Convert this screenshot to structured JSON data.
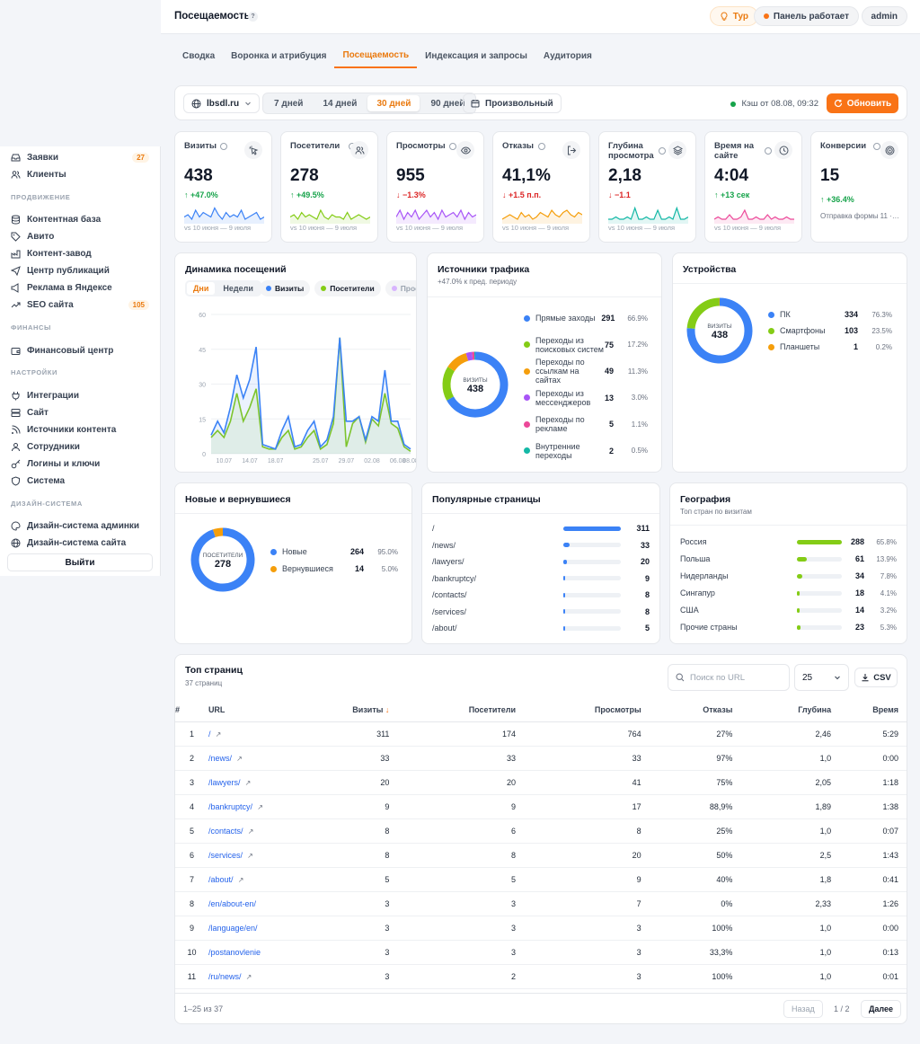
{
  "sidebar": {
    "items_top": [
      {
        "label": "Заявки",
        "badge": "27"
      },
      {
        "label": "Клиенты"
      }
    ],
    "section_promo": "ПРОДВИЖЕНИЕ",
    "items_promo": [
      {
        "label": "Контентная база"
      },
      {
        "label": "Авито"
      },
      {
        "label": "Контент-завод"
      },
      {
        "label": "Центр публикаций"
      },
      {
        "label": "Реклама в Яндексе"
      },
      {
        "label": "SEO сайта",
        "badge": "105"
      }
    ],
    "section_fin": "ФИНАНСЫ",
    "items_fin": [
      {
        "label": "Финансовый центр"
      }
    ],
    "section_settings": "НАСТРОЙКИ",
    "items_settings": [
      {
        "label": "Интеграции"
      },
      {
        "label": "Сайт"
      },
      {
        "label": "Источники контента"
      },
      {
        "label": "Сотрудники"
      },
      {
        "label": "Логины и ключи"
      },
      {
        "label": "Система"
      }
    ],
    "section_design": "ДИЗАЙН-СИСТЕМА",
    "items_design": [
      {
        "label": "Дизайн-система админки"
      },
      {
        "label": "Дизайн-система сайта"
      }
    ],
    "logout": "Выйти"
  },
  "header": {
    "title": "Посещаемость",
    "help": "?",
    "tour": "Тур",
    "status": "Панель работает",
    "user": "admin"
  },
  "tabs": [
    "Сводка",
    "Воронка и атрибуция",
    "Посещаемость",
    "Индексация и запросы",
    "Аудитория"
  ],
  "active_tab": 2,
  "filters": {
    "site": "lbsdl.ru",
    "periods": [
      "7 дней",
      "14 дней",
      "30 дней",
      "90 дней"
    ],
    "active_period": 2,
    "custom": "Произвольный",
    "cache": "Кэш от 08.08, 09:32",
    "refresh": "Обновить"
  },
  "colors": {
    "accent": "#f97316",
    "blue": "#3b82f6",
    "green": "#84cc16",
    "purple": "#a855f7",
    "orange": "#f59e0b",
    "teal": "#14b8a6",
    "pink": "#ec4899",
    "red": "#dc2626",
    "up": "#16a34a"
  },
  "kpis": [
    {
      "label": "Визиты",
      "value": "438",
      "delta": "+47.0%",
      "dir": "up",
      "cmp": "vs 10 июня — 9 июля",
      "color": "#3b82f6",
      "icon": "pointer-icon",
      "spark": [
        3,
        4,
        2,
        6,
        3,
        5,
        4,
        3,
        7,
        4,
        2,
        5,
        3,
        4,
        3,
        6,
        2,
        3,
        4,
        5,
        2,
        3
      ]
    },
    {
      "label": "Посетители",
      "value": "278",
      "delta": "+49.5%",
      "dir": "up",
      "cmp": "vs 10 июня — 9 июля",
      "color": "#84cc16",
      "icon": "users-icon",
      "spark": [
        3,
        4,
        2,
        5,
        3,
        4,
        3,
        2,
        6,
        3,
        2,
        4,
        3,
        3,
        2,
        5,
        2,
        3,
        4,
        3,
        2,
        3
      ]
    },
    {
      "label": "Просмотры",
      "value": "955",
      "delta": "−1.3%",
      "dir": "down",
      "cmp": "vs 10 июня — 9 июля",
      "color": "#a855f7",
      "icon": "eye-icon",
      "spark": [
        3,
        6,
        2,
        5,
        3,
        6,
        2,
        4,
        6,
        3,
        5,
        2,
        6,
        3,
        4,
        5,
        3,
        6,
        2,
        5,
        3,
        4
      ]
    },
    {
      "label": "Отказы",
      "value": "41,1%",
      "delta": "+1.5 п.п.",
      "dir": "down",
      "cmp": "vs 10 июня — 9 июля",
      "color": "#f59e0b",
      "icon": "exit-icon",
      "spark": [
        2,
        3,
        4,
        3,
        2,
        5,
        3,
        4,
        2,
        3,
        5,
        4,
        3,
        6,
        4,
        3,
        5,
        6,
        4,
        3,
        5,
        4
      ]
    },
    {
      "label": "Глубина просмотра",
      "value": "2,18",
      "delta": "−1.1",
      "dir": "down",
      "cmp": "vs 10 июня — 9 июля",
      "color": "#14b8a6",
      "icon": "layers-icon",
      "spark": [
        2,
        2,
        3,
        2,
        2,
        3,
        2,
        7,
        2,
        2,
        3,
        2,
        2,
        6,
        2,
        2,
        3,
        2,
        7,
        2,
        2,
        3
      ]
    },
    {
      "label": "Время на сайте",
      "value": "4:04",
      "delta": "+13 сек",
      "dir": "up",
      "cmp": "vs 10 июня — 9 июля",
      "color": "#ec4899",
      "icon": "clock-icon",
      "spark": [
        2,
        3,
        2,
        2,
        4,
        2,
        2,
        3,
        6,
        2,
        2,
        3,
        2,
        2,
        4,
        2,
        3,
        2,
        2,
        3,
        2,
        2
      ]
    },
    {
      "label": "Конверсии",
      "value": "15",
      "delta": "+36.4%",
      "dir": "up",
      "cmp": "Отправка формы 11 ·…",
      "color": "#111827",
      "icon": "target-icon",
      "spark": []
    }
  ],
  "dynamics": {
    "title": "Динамика посещений",
    "toggle": [
      "Дни",
      "Недели"
    ],
    "legend": [
      "Визиты",
      "Посетители",
      "Просм"
    ],
    "chart_data": {
      "type": "line",
      "x": [
        "08.07",
        "09.07",
        "10.07",
        "11.07",
        "12.07",
        "13.07",
        "14.07",
        "15.07",
        "16.07",
        "17.07",
        "18.07",
        "19.07",
        "20.07",
        "21.07",
        "22.07",
        "23.07",
        "24.07",
        "25.07",
        "26.07",
        "27.07",
        "28.07",
        "29.07",
        "30.07",
        "31.07",
        "01.08",
        "02.08",
        "03.08",
        "04.08",
        "05.08",
        "06.08",
        "07.08",
        "08.08"
      ],
      "tick_labels": [
        "10.07",
        "14.07",
        "18.07",
        "25.07",
        "29.07",
        "02.08",
        "06.08",
        "08.08"
      ],
      "ylim": [
        0,
        60
      ],
      "yticks": [
        0,
        15,
        30,
        45,
        60
      ],
      "series": [
        {
          "name": "Визиты",
          "color": "#3b82f6",
          "values": [
            8,
            14,
            9,
            20,
            34,
            24,
            32,
            46,
            4,
            3,
            2,
            10,
            16,
            3,
            4,
            10,
            14,
            3,
            6,
            16,
            50,
            14,
            14,
            16,
            6,
            16,
            14,
            36,
            14,
            14,
            4,
            2
          ]
        },
        {
          "name": "Посетители",
          "color": "#84cc16",
          "values": [
            7,
            10,
            7,
            14,
            26,
            14,
            20,
            28,
            3,
            2,
            2,
            7,
            10,
            2,
            3,
            7,
            10,
            2,
            4,
            13,
            50,
            3,
            13,
            16,
            5,
            15,
            12,
            26,
            13,
            11,
            3,
            1
          ]
        }
      ]
    }
  },
  "sources": {
    "title": "Источники трафика",
    "sub": "+47.0% к пред. периоду",
    "center_label": "визиты",
    "center_value": "438",
    "chart_data": {
      "type": "pie",
      "items": [
        {
          "label": "Прямые заходы",
          "value": 291,
          "pct": "66.9%",
          "color": "#3b82f6"
        },
        {
          "label": "Переходы из поисковых систем",
          "value": 75,
          "pct": "17.2%",
          "color": "#84cc16"
        },
        {
          "label": "Переходы по ссылкам на сайтах",
          "value": 49,
          "pct": "11.3%",
          "color": "#f59e0b"
        },
        {
          "label": "Переходы из мессенджеров",
          "value": 13,
          "pct": "3.0%",
          "color": "#a855f7"
        },
        {
          "label": "Переходы по рекламе",
          "value": 5,
          "pct": "1.1%",
          "color": "#ec4899"
        },
        {
          "label": "Внутренние переходы",
          "value": 2,
          "pct": "0.5%",
          "color": "#14b8a6"
        }
      ]
    }
  },
  "devices": {
    "title": "Устройства",
    "center_label": "визиты",
    "center_value": "438",
    "chart_data": {
      "type": "pie",
      "items": [
        {
          "label": "ПК",
          "value": 334,
          "pct": "76.3%",
          "color": "#3b82f6"
        },
        {
          "label": "Смартфоны",
          "value": 103,
          "pct": "23.5%",
          "color": "#84cc16"
        },
        {
          "label": "Планшеты",
          "value": 1,
          "pct": "0.2%",
          "color": "#f59e0b"
        }
      ]
    }
  },
  "newret": {
    "title": "Новые и вернувшиеся",
    "center_label": "посетители",
    "center_value": "278",
    "chart_data": {
      "type": "pie",
      "items": [
        {
          "label": "Новые",
          "value": 264,
          "pct": "95.0%",
          "color": "#3b82f6"
        },
        {
          "label": "Вернувшиеся",
          "value": 14,
          "pct": "5.0%",
          "color": "#f59e0b"
        }
      ]
    }
  },
  "popular": {
    "title": "Популярные страницы",
    "chart_data": {
      "type": "bar",
      "items": [
        {
          "label": "/",
          "value": 311
        },
        {
          "label": "/news/",
          "value": 33
        },
        {
          "label": "/lawyers/",
          "value": 20
        },
        {
          "label": "/bankruptcy/",
          "value": 9
        },
        {
          "label": "/contacts/",
          "value": 8
        },
        {
          "label": "/services/",
          "value": 8
        },
        {
          "label": "/about/",
          "value": 5
        }
      ],
      "max": 311
    }
  },
  "geo": {
    "title": "География",
    "sub": "Топ стран по визитам",
    "chart_data": {
      "type": "bar",
      "items": [
        {
          "label": "Россия",
          "value": 288,
          "pct": "65.8%"
        },
        {
          "label": "Польша",
          "value": 61,
          "pct": "13.9%"
        },
        {
          "label": "Нидерланды",
          "value": 34,
          "pct": "7.8%"
        },
        {
          "label": "Сингапур",
          "value": 18,
          "pct": "4.1%"
        },
        {
          "label": "США",
          "value": 14,
          "pct": "3.2%"
        },
        {
          "label": "Прочие страны",
          "value": 23,
          "pct": "5.3%"
        }
      ],
      "max": 288
    }
  },
  "top": {
    "title": "Топ страниц",
    "sub": "37 страниц",
    "search_placeholder": "Поиск по URL",
    "per_page": "25",
    "csv": "CSV",
    "columns": [
      "#",
      "URL",
      "Визиты",
      "Посетители",
      "Просмотры",
      "Отказы",
      "Глубина",
      "Время"
    ],
    "rows": [
      [
        "1",
        "/",
        "311",
        "174",
        "764",
        "27%",
        "2,46",
        "5:29"
      ],
      [
        "2",
        "/news/",
        "33",
        "33",
        "33",
        "97%",
        "1,0",
        "0:00"
      ],
      [
        "3",
        "/lawyers/",
        "20",
        "20",
        "41",
        "75%",
        "2,05",
        "1:18"
      ],
      [
        "4",
        "/bankruptcy/",
        "9",
        "9",
        "17",
        "88,9%",
        "1,89",
        "1:38"
      ],
      [
        "5",
        "/contacts/",
        "8",
        "6",
        "8",
        "25%",
        "1,0",
        "0:07"
      ],
      [
        "6",
        "/services/",
        "8",
        "8",
        "20",
        "50%",
        "2,5",
        "1:43"
      ],
      [
        "7",
        "/about/",
        "5",
        "5",
        "9",
        "40%",
        "1,8",
        "0:41"
      ],
      [
        "8",
        "/en/about-en/",
        "3",
        "3",
        "7",
        "0%",
        "2,33",
        "1:26"
      ],
      [
        "9",
        "/language/en/",
        "3",
        "3",
        "3",
        "100%",
        "1,0",
        "0:00"
      ],
      [
        "10",
        "/postanovlenie",
        "3",
        "3",
        "3",
        "33,3%",
        "1,0",
        "0:13"
      ],
      [
        "11",
        "/ru/news/",
        "3",
        "2",
        "3",
        "100%",
        "1,0",
        "0:01"
      ]
    ],
    "range": "1–25 из 37",
    "prev": "Назад",
    "page": "1 / 2",
    "next": "Далее"
  }
}
